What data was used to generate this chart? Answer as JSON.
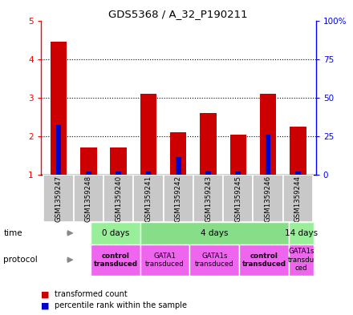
{
  "title": "GDS5368 / A_32_P190211",
  "samples": [
    "GSM1359247",
    "GSM1359248",
    "GSM1359240",
    "GSM1359241",
    "GSM1359242",
    "GSM1359243",
    "GSM1359245",
    "GSM1359246",
    "GSM1359244"
  ],
  "red_values": [
    4.45,
    1.7,
    1.7,
    3.1,
    2.1,
    2.6,
    2.05,
    3.1,
    2.25
  ],
  "blue_values": [
    2.3,
    1.08,
    1.08,
    1.08,
    1.45,
    1.1,
    1.08,
    2.05,
    1.08
  ],
  "ylim_left": [
    1,
    5
  ],
  "ylim_right": [
    0,
    100
  ],
  "yticks_left": [
    1,
    2,
    3,
    4,
    5
  ],
  "ytick_labels_left": [
    "1",
    "2",
    "3",
    "4",
    "5"
  ],
  "yticks_right": [
    0,
    25,
    50,
    75,
    100
  ],
  "ytick_labels_right": [
    "0",
    "25",
    "50",
    "75",
    "100%"
  ],
  "time_groups": [
    {
      "label": "0 days",
      "start": 0,
      "end": 2,
      "color": "#99EE99"
    },
    {
      "label": "4 days",
      "start": 2,
      "end": 8,
      "color": "#88DD88"
    },
    {
      "label": "14 days",
      "start": 8,
      "end": 9,
      "color": "#99EE99"
    }
  ],
  "protocol_groups": [
    {
      "label": "control\ntransduced",
      "start": 0,
      "end": 2,
      "color": "#EE66EE",
      "bold": true
    },
    {
      "label": "GATA1\ntransduced",
      "start": 2,
      "end": 4,
      "color": "#EE66EE",
      "bold": false
    },
    {
      "label": "GATA1s\ntransduced",
      "start": 4,
      "end": 6,
      "color": "#EE66EE",
      "bold": false
    },
    {
      "label": "control\ntransduced",
      "start": 6,
      "end": 8,
      "color": "#EE66EE",
      "bold": true
    },
    {
      "label": "GATA1s\ntransdu\nced",
      "start": 8,
      "end": 9,
      "color": "#EE66EE",
      "bold": false
    }
  ],
  "red_color": "#CC0000",
  "blue_color": "#0000CC",
  "bg_color": "#FFFFFF",
  "sample_bg": "#C8C8C8",
  "chart_bg": "#FFFFFF",
  "bar_width": 0.55,
  "blue_bar_width": 0.18
}
